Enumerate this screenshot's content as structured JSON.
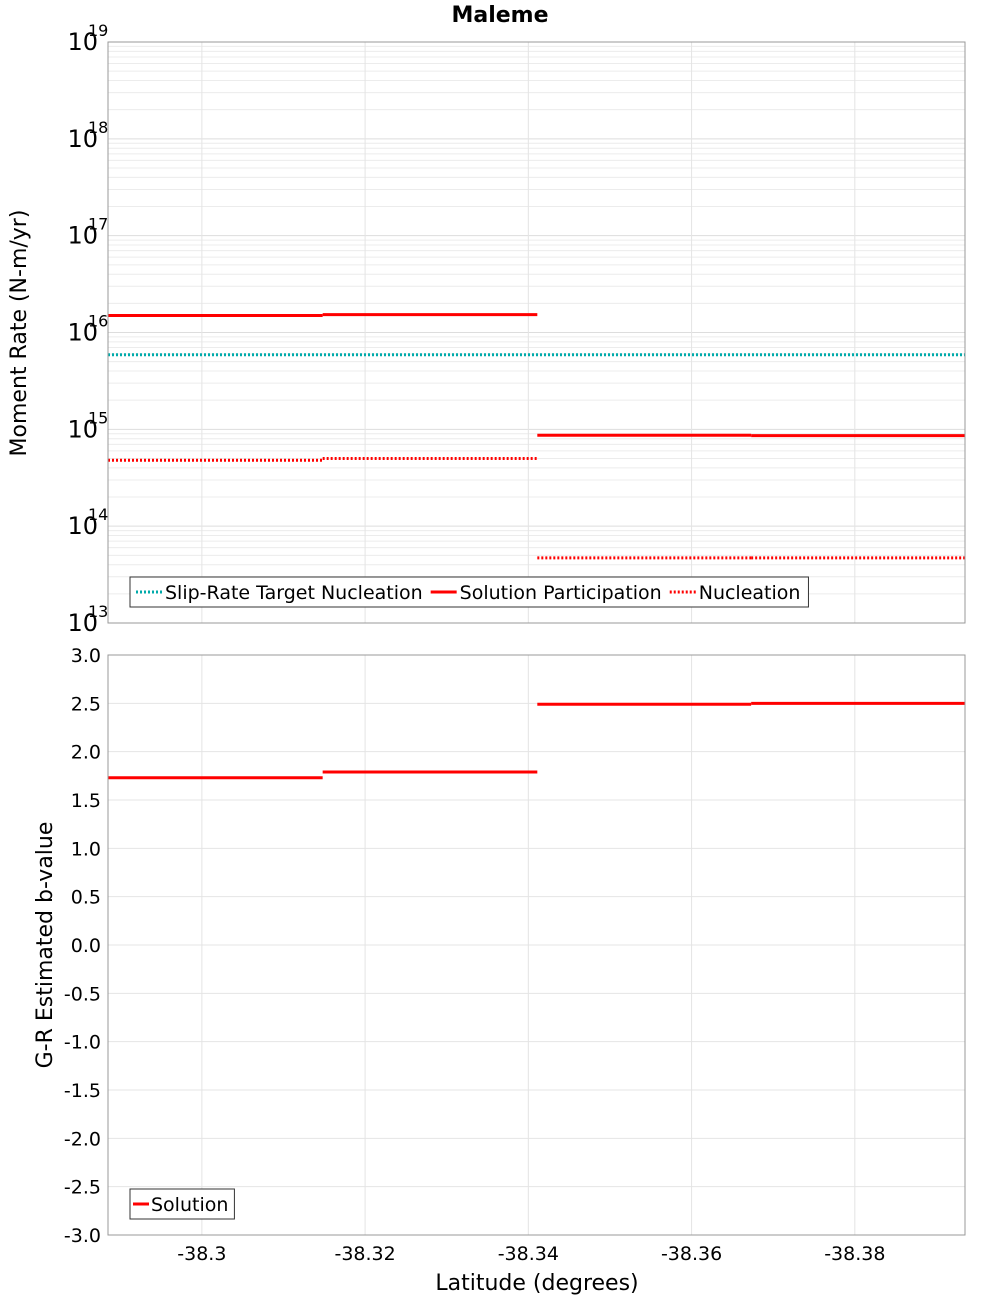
{
  "chart_data": [
    {
      "type": "line",
      "title": "Maleme",
      "xlabel": "",
      "ylabel": "Moment Rate (N-m/yr)",
      "yscale": "log",
      "ylim": [
        10000000000000.0,
        1e+19
      ],
      "xlim": [
        -38.2885,
        -38.3935
      ],
      "x_axis_direction": "decreasing-to-right",
      "grid": true,
      "legend_placement": "bottom-left",
      "y_tick_exponents": [
        13,
        14,
        15,
        16,
        17,
        18,
        19
      ],
      "y_tick_base": "10",
      "series": [
        {
          "name": "Slip-Rate Target Nucleation",
          "color": "#00aaaa",
          "style": "dotted",
          "segments": [
            {
              "x": [
                -38.2885,
                -38.3935
              ],
              "y": 5900000000000000.0
            }
          ]
        },
        {
          "name": "Solution Participation",
          "color": "#ff0000",
          "style": "solid",
          "segments": [
            {
              "x": [
                -38.2885,
                -38.3148
              ],
              "y": 1.5e+16
            },
            {
              "x": [
                -38.3148,
                -38.3411
              ],
              "y": 1.53e+16
            },
            {
              "x": [
                -38.3411,
                -38.3673
              ],
              "y": 870000000000000.0
            },
            {
              "x": [
                -38.3673,
                -38.3935
              ],
              "y": 860000000000000.0
            }
          ]
        },
        {
          "name": "Nucleation",
          "color": "#ff0000",
          "style": "dotted",
          "segments": [
            {
              "x": [
                -38.2885,
                -38.3148
              ],
              "y": 480000000000000.0
            },
            {
              "x": [
                -38.3148,
                -38.3411
              ],
              "y": 500000000000000.0
            },
            {
              "x": [
                -38.3411,
                -38.3673
              ],
              "y": 47000000000000.0
            },
            {
              "x": [
                -38.3673,
                -38.3935
              ],
              "y": 47000000000000.0
            }
          ]
        }
      ]
    },
    {
      "type": "line",
      "title": "",
      "xlabel": "Latitude (degrees)",
      "ylabel": "G-R Estimated b-value",
      "ylim": [
        -3.0,
        3.0
      ],
      "xlim": [
        -38.2885,
        -38.3935
      ],
      "x_ticks": [
        -38.3,
        -38.32,
        -38.34,
        -38.36,
        -38.38
      ],
      "x_tick_labels": [
        "-38.3",
        "-38.32",
        "-38.34",
        "-38.36",
        "-38.38"
      ],
      "y_ticks": [
        -3.0,
        -2.5,
        -2.0,
        -1.5,
        -1.0,
        -0.5,
        0.0,
        0.5,
        1.0,
        1.5,
        2.0,
        2.5,
        3.0
      ],
      "y_tick_labels": [
        "-3.0",
        "-2.5",
        "-2.0",
        "-1.5",
        "-1.0",
        "-0.5",
        "0.0",
        "0.5",
        "1.0",
        "1.5",
        "2.0",
        "2.5",
        "3.0"
      ],
      "grid": true,
      "legend_placement": "bottom-left",
      "series": [
        {
          "name": "Solution",
          "color": "#ff0000",
          "style": "solid",
          "segments": [
            {
              "x": [
                -38.2885,
                -38.3148
              ],
              "y": 1.73
            },
            {
              "x": [
                -38.3148,
                -38.3411
              ],
              "y": 1.79
            },
            {
              "x": [
                -38.3411,
                -38.3673
              ],
              "y": 2.49
            },
            {
              "x": [
                -38.3673,
                -38.3935
              ],
              "y": 2.5
            }
          ]
        }
      ]
    }
  ]
}
